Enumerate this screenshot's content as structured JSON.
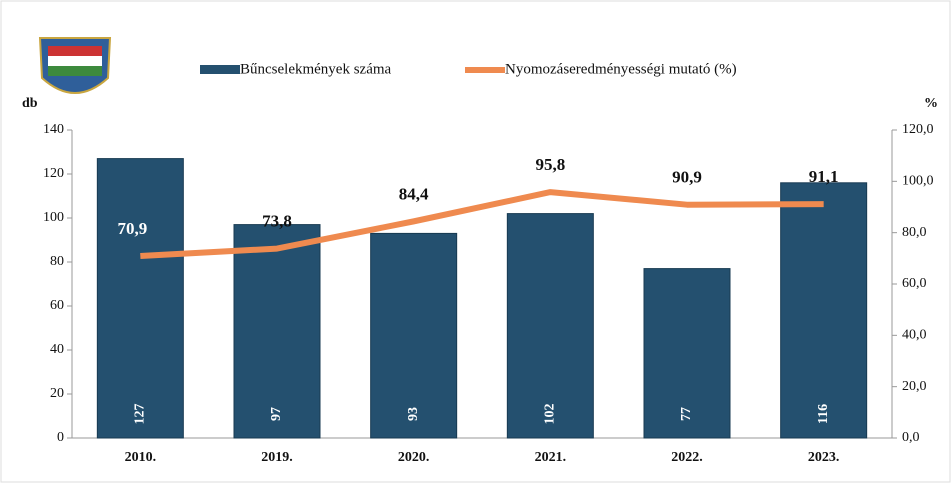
{
  "chart_data": {
    "type": "combo",
    "categories": [
      "2010.",
      "2019.",
      "2020.",
      "2021.",
      "2022.",
      "2023."
    ],
    "series": [
      {
        "name": "Bűncselekmények száma",
        "kind": "bar",
        "color": "#24506f",
        "values": [
          127,
          97,
          93,
          102,
          77,
          116
        ]
      },
      {
        "name": "Nyomozáseredményességi mutató (%)",
        "kind": "line",
        "axis": "y2",
        "color": "#ef8a4f",
        "values": [
          70.9,
          73.8,
          84.4,
          95.8,
          90.9,
          91.1
        ],
        "value_labels": [
          "70,9",
          "73,8",
          "84,4",
          "95,8",
          "90,9",
          "91,1"
        ]
      }
    ],
    "ylabel": "db",
    "y2label": "%",
    "ylim": [
      0,
      140
    ],
    "yticks": [
      0,
      20,
      40,
      60,
      80,
      100,
      120,
      140
    ],
    "y2lim": [
      0,
      120
    ],
    "y2ticks": [
      {
        "value": 0,
        "label": "0,0"
      },
      {
        "value": 20,
        "label": "20,0"
      },
      {
        "value": 40,
        "label": "40,0"
      },
      {
        "value": 60,
        "label": "60,0"
      },
      {
        "value": 80,
        "label": "80,0"
      },
      {
        "value": 100,
        "label": "100,0"
      },
      {
        "value": 120,
        "label": "120,0"
      }
    ]
  }
}
